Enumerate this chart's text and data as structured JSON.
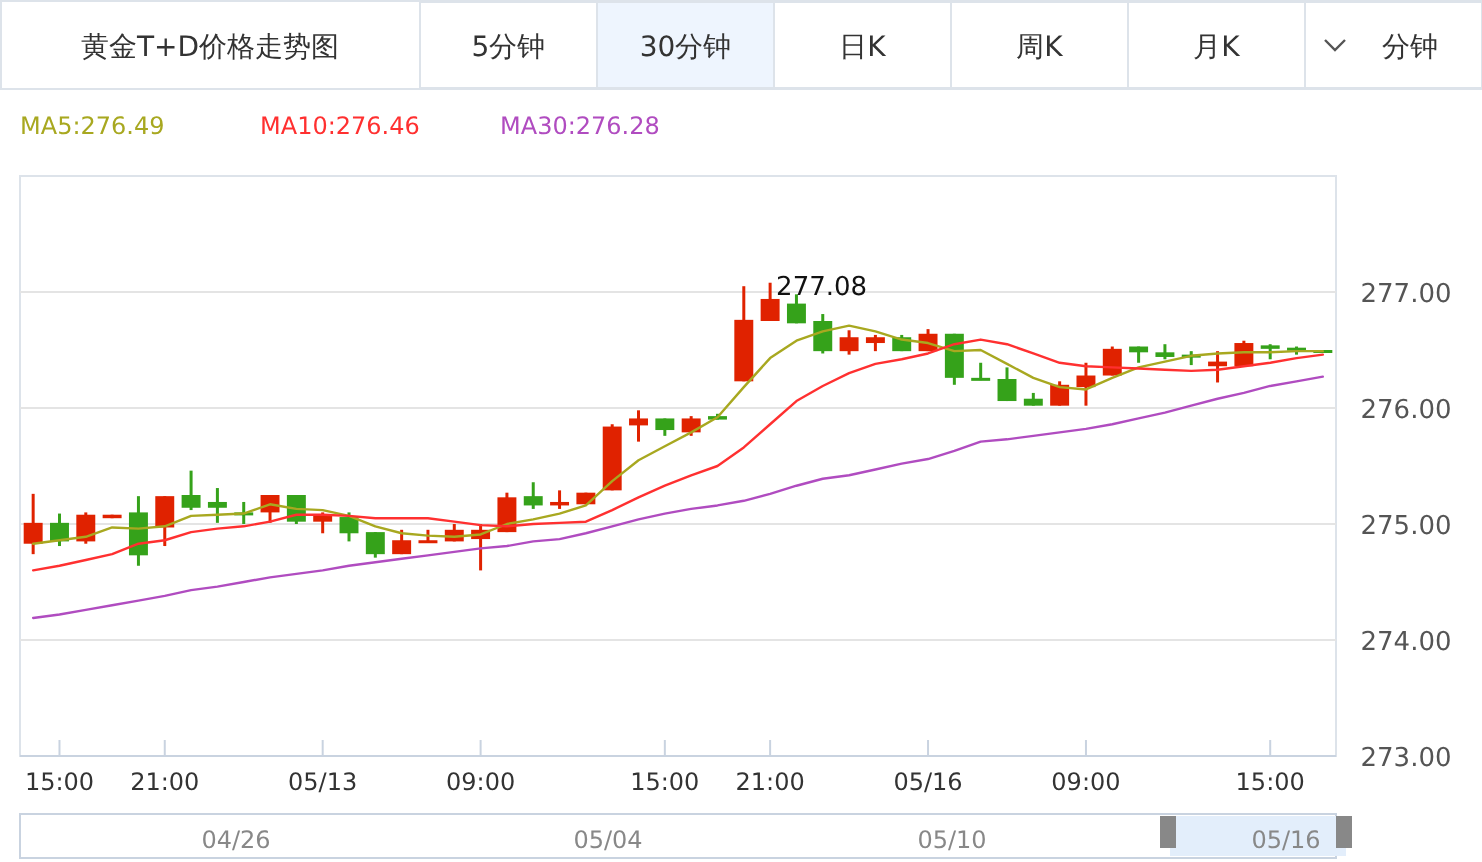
{
  "chart_data": {
    "type": "candlestick",
    "title": "黄金T+D价格走势图",
    "categories": [
      null,
      "15:00",
      null,
      null,
      null,
      "21:00",
      null,
      null,
      null,
      null,
      null,
      "05/13",
      null,
      null,
      null,
      null,
      null,
      "09:00",
      null,
      null,
      null,
      null,
      null,
      null,
      "15:00",
      null,
      null,
      null,
      "21:00",
      null,
      null,
      null,
      null,
      null,
      "05/16",
      null,
      null,
      null,
      null,
      null,
      "09:00",
      null,
      null,
      null,
      null,
      null,
      null,
      "15:00",
      null,
      null
    ],
    "ohlc": [
      [
        274.83,
        275.26,
        274.74,
        275.01
      ],
      [
        275.01,
        275.09,
        274.81,
        274.85
      ],
      [
        274.85,
        275.1,
        274.83,
        275.08
      ],
      [
        275.05,
        275.08,
        275.05,
        275.08
      ],
      [
        275.1,
        275.24,
        274.64,
        274.73
      ],
      [
        274.97,
        275.24,
        274.81,
        275.24
      ],
      [
        275.25,
        275.46,
        275.12,
        275.14
      ],
      [
        275.19,
        275.31,
        275.01,
        275.14
      ],
      [
        275.1,
        275.19,
        275.0,
        275.08
      ],
      [
        275.1,
        275.25,
        275.01,
        275.25
      ],
      [
        275.25,
        275.25,
        275.0,
        275.02
      ],
      [
        275.02,
        275.1,
        274.92,
        275.07
      ],
      [
        275.06,
        275.1,
        274.85,
        274.92
      ],
      [
        274.93,
        274.93,
        274.71,
        274.74
      ],
      [
        274.74,
        274.95,
        274.74,
        274.86
      ],
      [
        274.85,
        274.95,
        274.85,
        274.86
      ],
      [
        274.85,
        275.0,
        274.85,
        274.95
      ],
      [
        274.87,
        275.0,
        274.6,
        274.95
      ],
      [
        274.93,
        275.27,
        274.93,
        275.23
      ],
      [
        275.24,
        275.36,
        275.13,
        275.16
      ],
      [
        275.16,
        275.29,
        275.13,
        275.19
      ],
      [
        275.17,
        275.27,
        275.17,
        275.27
      ],
      [
        275.29,
        275.86,
        275.29,
        275.84
      ],
      [
        275.85,
        275.98,
        275.71,
        275.91
      ],
      [
        275.91,
        275.91,
        275.76,
        275.81
      ],
      [
        275.79,
        275.93,
        275.76,
        275.91
      ],
      [
        275.93,
        275.95,
        275.9,
        275.9
      ],
      [
        276.23,
        277.05,
        276.23,
        276.76
      ],
      [
        276.75,
        277.08,
        276.75,
        276.94
      ],
      [
        276.9,
        276.98,
        276.73,
        276.73
      ],
      [
        276.75,
        276.81,
        276.47,
        276.49
      ],
      [
        276.49,
        276.67,
        276.46,
        276.61
      ],
      [
        276.56,
        276.63,
        276.49,
        276.61
      ],
      [
        276.61,
        276.63,
        276.49,
        276.49
      ],
      [
        276.49,
        276.68,
        276.49,
        276.64
      ],
      [
        276.64,
        276.64,
        276.2,
        276.26
      ],
      [
        276.26,
        276.39,
        276.24,
        276.24
      ],
      [
        276.25,
        276.35,
        276.06,
        276.06
      ],
      [
        276.08,
        276.13,
        276.02,
        276.02
      ],
      [
        276.02,
        276.23,
        276.02,
        276.2
      ],
      [
        276.18,
        276.39,
        276.02,
        276.28
      ],
      [
        276.28,
        276.53,
        276.28,
        276.51
      ],
      [
        276.53,
        276.53,
        276.39,
        276.48
      ],
      [
        276.48,
        276.55,
        276.42,
        276.44
      ],
      [
        276.46,
        276.49,
        276.37,
        276.44
      ],
      [
        276.36,
        276.49,
        276.22,
        276.4
      ],
      [
        276.36,
        276.58,
        276.36,
        276.56
      ],
      [
        276.54,
        276.55,
        276.42,
        276.51
      ],
      [
        276.52,
        276.53,
        276.46,
        276.5
      ],
      [
        276.5,
        276.5,
        276.49,
        276.49
      ]
    ],
    "colors": [
      "#e02200",
      "#35a21a",
      "#e02200",
      "#e02200",
      "#35a21a",
      "#e02200",
      "#35a21a",
      "#35a21a",
      "#35a21a",
      "#e02200",
      "#35a21a",
      "#e02200",
      "#35a21a",
      "#35a21a",
      "#e02200",
      "#e02200",
      "#e02200",
      "#e02200",
      "#e02200",
      "#35a21a",
      "#e02200",
      "#e02200",
      "#e02200",
      "#e02200",
      "#35a21a",
      "#e02200",
      "#35a21a",
      "#e02200",
      "#e02200",
      "#35a21a",
      "#35a21a",
      "#e02200",
      "#e02200",
      "#35a21a",
      "#e02200",
      "#35a21a",
      "#35a21a",
      "#35a21a",
      "#35a21a",
      "#e02200",
      "#e02200",
      "#e02200",
      "#35a21a",
      "#35a21a",
      "#35a21a",
      "#e02200",
      "#e02200",
      "#35a21a",
      "#35a21a",
      "#35a21a"
    ],
    "series": [
      {
        "name": "MA5:276.49",
        "type": "line",
        "color": "#a8a820",
        "values": [
          274.83,
          274.86,
          274.89,
          274.97,
          274.96,
          274.98,
          275.07,
          275.08,
          275.09,
          275.17,
          275.13,
          275.12,
          275.07,
          274.98,
          274.92,
          274.9,
          274.89,
          274.91,
          275.0,
          275.04,
          275.09,
          275.16,
          275.37,
          275.55,
          275.67,
          275.79,
          275.92,
          276.18,
          276.43,
          276.58,
          276.66,
          276.71,
          276.66,
          276.59,
          276.56,
          276.49,
          276.5,
          276.38,
          276.26,
          276.18,
          276.16,
          276.26,
          276.35,
          276.4,
          276.45,
          276.47,
          276.48,
          276.48,
          276.49,
          276.49
        ]
      },
      {
        "name": "MA10:276.46",
        "type": "line",
        "color": "#ff3030",
        "values": [
          274.6,
          274.64,
          274.69,
          274.74,
          274.83,
          274.86,
          274.93,
          274.96,
          274.98,
          275.02,
          275.08,
          275.08,
          275.07,
          275.05,
          275.05,
          275.05,
          275.02,
          274.99,
          274.98,
          275.0,
          275.01,
          275.02,
          275.12,
          275.23,
          275.33,
          275.42,
          275.5,
          275.66,
          275.86,
          276.06,
          276.19,
          276.3,
          276.38,
          276.42,
          276.47,
          276.55,
          276.59,
          276.55,
          276.47,
          276.39,
          276.36,
          276.35,
          276.34,
          276.33,
          276.32,
          276.33,
          276.36,
          276.39,
          276.43,
          276.46
        ]
      },
      {
        "name": "MA30:276.28",
        "type": "line",
        "color": "#b04cc0",
        "values": [
          274.19,
          274.22,
          274.26,
          274.3,
          274.34,
          274.38,
          274.43,
          274.46,
          274.5,
          274.54,
          274.57,
          274.6,
          274.64,
          274.67,
          274.7,
          274.73,
          274.76,
          274.79,
          274.81,
          274.85,
          274.87,
          274.92,
          274.98,
          275.04,
          275.09,
          275.13,
          275.16,
          275.2,
          275.26,
          275.33,
          275.39,
          275.42,
          275.47,
          275.52,
          275.56,
          275.63,
          275.71,
          275.73,
          275.76,
          275.79,
          275.82,
          275.86,
          275.91,
          275.96,
          276.02,
          276.08,
          276.13,
          276.19,
          276.23,
          276.27
        ]
      }
    ],
    "ylim": [
      273,
      278
    ],
    "yticks": [
      {
        "value": 273,
        "label": "273.00"
      },
      {
        "value": 274,
        "label": "274.00"
      },
      {
        "value": 275,
        "label": "275.00"
      },
      {
        "value": 276,
        "label": "276.00"
      },
      {
        "value": 277,
        "label": "277.00"
      }
    ],
    "grid": "y",
    "legend": "top left",
    "annotations": [
      "5分钟",
      "30分钟",
      "日K",
      "周K",
      "月K",
      "分钟",
      "277.08",
      "04/26",
      "05/04",
      "05/10",
      "05/16"
    ]
  }
}
